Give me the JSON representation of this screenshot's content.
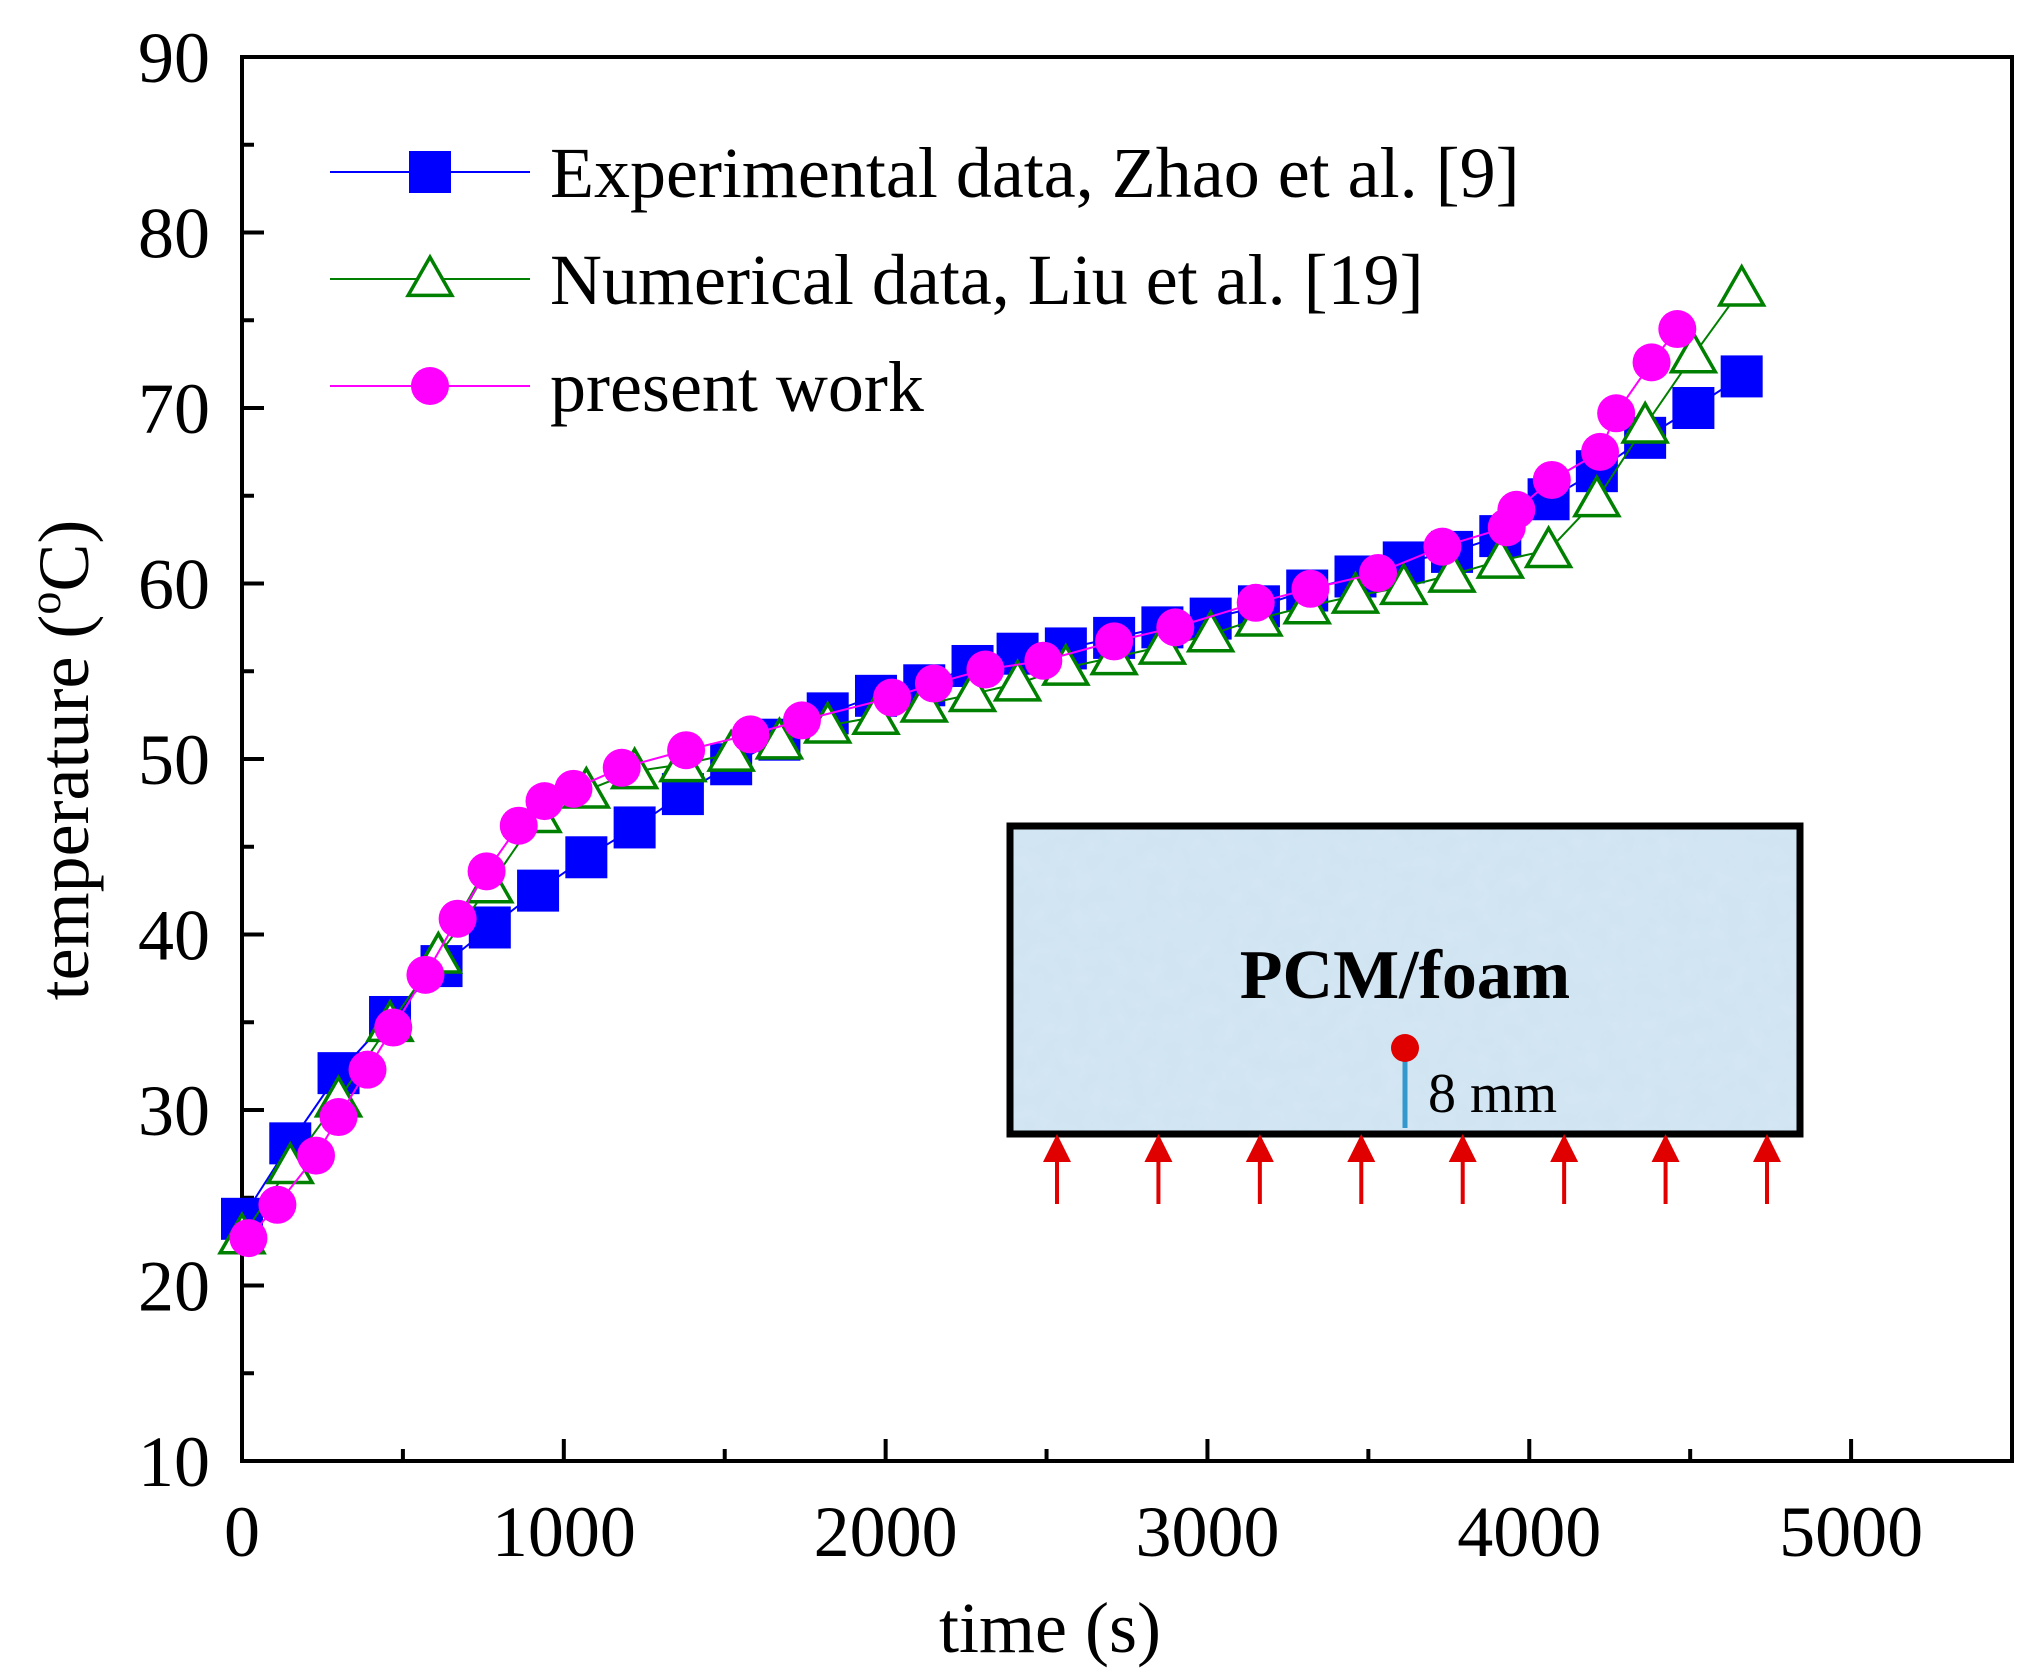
{
  "chart_data": {
    "type": "line",
    "title": "",
    "xlabel": "time (s)",
    "ylabel_parts": {
      "prefix": "temperature (",
      "superscript": "o",
      "suffix": "C)"
    },
    "xlim": [
      0,
      5500
    ],
    "ylim": [
      10,
      90
    ],
    "xticks": [
      0,
      1000,
      2000,
      3000,
      4000,
      5000
    ],
    "yticks": [
      10,
      20,
      30,
      40,
      50,
      60,
      70,
      80,
      90
    ],
    "grid": false,
    "legend_position": "top-left",
    "series": [
      {
        "name": "Experimental data, Zhao et al. [9]",
        "color": "#0000ff",
        "marker": "filled-square",
        "x": [
          0,
          150,
          300,
          460,
          620,
          770,
          920,
          1070,
          1220,
          1370,
          1520,
          1670,
          1820,
          1970,
          2120,
          2270,
          2410,
          2560,
          2710,
          2860,
          3010,
          3160,
          3310,
          3460,
          3610,
          3760,
          3910,
          4060,
          4210,
          4360,
          4510,
          4660
        ],
        "y": [
          23.8,
          28.1,
          32.1,
          35.3,
          38.2,
          40.4,
          42.5,
          44.4,
          46.1,
          48.0,
          49.7,
          51.1,
          52.6,
          53.6,
          54.2,
          55.3,
          56.0,
          56.3,
          56.9,
          57.5,
          58.0,
          58.7,
          59.6,
          60.4,
          61.2,
          61.8,
          62.7,
          64.8,
          66.4,
          68.3,
          70.0,
          71.8
        ]
      },
      {
        "name": "Numerical data, Liu et al. [19]",
        "color": "#008000",
        "marker": "open-triangle",
        "x": [
          0,
          150,
          300,
          460,
          610,
          770,
          920,
          1070,
          1220,
          1370,
          1520,
          1670,
          1820,
          1970,
          2120,
          2270,
          2410,
          2560,
          2710,
          2860,
          3010,
          3160,
          3310,
          3460,
          3610,
          3760,
          3910,
          4060,
          4210,
          4360,
          4510,
          4660
        ],
        "y": [
          22.8,
          26.8,
          30.6,
          34.9,
          38.8,
          42.8,
          46.8,
          48.2,
          49.3,
          49.7,
          50.3,
          51.0,
          51.9,
          52.4,
          53.1,
          53.7,
          54.3,
          55.2,
          55.8,
          56.4,
          57.1,
          58.0,
          58.7,
          59.3,
          59.8,
          60.5,
          61.3,
          61.9,
          64.8,
          69.0,
          73.0,
          76.8
        ]
      },
      {
        "name": "present work",
        "color": "#ff00ff",
        "marker": "filled-circle",
        "x": [
          20,
          110,
          230,
          300,
          390,
          470,
          570,
          670,
          760,
          860,
          940,
          1030,
          1180,
          1380,
          1580,
          1740,
          2020,
          2150,
          2310,
          2490,
          2710,
          2900,
          3150,
          3320,
          3530,
          3730,
          3930,
          3960,
          4070,
          4220,
          4270,
          4380,
          4460
        ],
        "y": [
          22.7,
          24.6,
          27.4,
          29.6,
          32.3,
          34.7,
          37.7,
          40.9,
          43.6,
          46.2,
          47.6,
          48.3,
          49.5,
          50.5,
          51.4,
          52.2,
          53.5,
          54.3,
          55.1,
          55.6,
          56.7,
          57.5,
          58.9,
          59.7,
          60.6,
          62.1,
          63.2,
          64.2,
          65.9,
          67.5,
          69.7,
          72.6,
          74.5
        ]
      }
    ],
    "inset": {
      "label": "PCM/foam",
      "dimension_label": "8 mm",
      "fill_color": "#cfe3f1",
      "sensor_color": "#e00000",
      "probe_color": "#3399cc",
      "arrow_color": "#e00000",
      "heat_arrow_count": 8
    }
  }
}
